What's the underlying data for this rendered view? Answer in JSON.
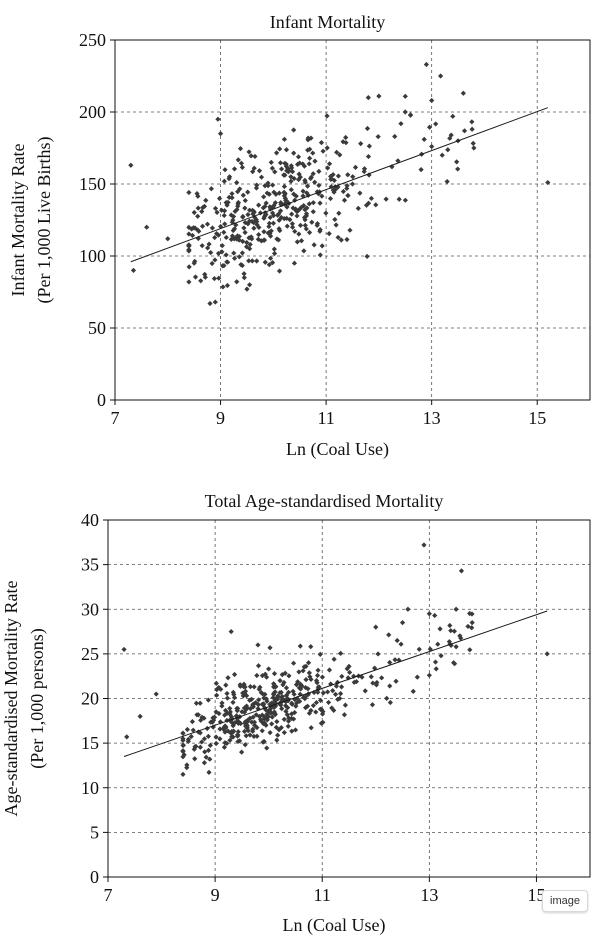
{
  "colors": {
    "point": "#3a3a3a",
    "line": "#1a1a1a",
    "grid": "#555555",
    "axis": "#111111"
  },
  "badge": {
    "label": "image"
  },
  "chart_data": [
    {
      "type": "scatter",
      "title": "Infant Mortality",
      "xlabel": "Ln (Coal Use)",
      "ylabel": [
        "Infant Mortality Rate",
        "(Per 1,000 Live Births)"
      ],
      "xlim": [
        7,
        16
      ],
      "ylim": [
        0,
        250
      ],
      "xticks": [
        7,
        9,
        11,
        13,
        15
      ],
      "yticks": [
        0,
        50,
        100,
        150,
        200,
        250
      ],
      "grid": true,
      "trendline": {
        "x": [
          7.3,
          15.2
        ],
        "y": [
          96,
          203
        ]
      },
      "sample": {
        "count": 420,
        "seed": 11,
        "xcenter": 9.9,
        "xspread": 0.85,
        "yspread": 20,
        "xmin": 8.4,
        "xmax": 13.8
      },
      "points": [
        [
          7.3,
          163
        ],
        [
          7.35,
          90
        ],
        [
          7.6,
          120
        ],
        [
          8.0,
          112
        ],
        [
          8.4,
          82
        ],
        [
          8.5,
          95
        ],
        [
          8.8,
          67
        ],
        [
          8.9,
          68
        ],
        [
          8.95,
          195
        ],
        [
          9.0,
          185
        ],
        [
          9.5,
          77
        ],
        [
          9.55,
          80
        ],
        [
          10.4,
          95
        ],
        [
          11.5,
          150
        ],
        [
          11.8,
          210
        ],
        [
          12.0,
          211
        ],
        [
          12.5,
          200
        ],
        [
          12.6,
          198
        ],
        [
          12.9,
          233
        ],
        [
          13.0,
          208
        ],
        [
          13.0,
          176
        ],
        [
          13.4,
          197
        ],
        [
          13.5,
          180
        ],
        [
          13.6,
          213
        ],
        [
          13.8,
          175
        ],
        [
          15.2,
          151
        ],
        [
          13.2,
          170
        ],
        [
          12.3,
          183
        ],
        [
          12.8,
          160
        ],
        [
          11.2,
          172
        ]
      ]
    },
    {
      "type": "scatter",
      "title": "Total Age-standardised Mortality",
      "xlabel": "Ln (Coal Use)",
      "ylabel": [
        "Age-standardised Mortality Rate",
        "(Per 1,000 persons)"
      ],
      "xlim": [
        7,
        16
      ],
      "ylim": [
        0,
        40
      ],
      "xticks": [
        7,
        9,
        11,
        13,
        15
      ],
      "yticks": [
        0,
        5,
        10,
        15,
        20,
        25,
        30,
        35,
        40
      ],
      "grid": true,
      "trendline": {
        "x": [
          7.3,
          15.2
        ],
        "y": [
          13.5,
          29.8
        ]
      },
      "sample": {
        "count": 420,
        "seed": 29,
        "xcenter": 10.0,
        "xspread": 0.85,
        "yspread": 1.9,
        "xmin": 8.4,
        "xmax": 13.8
      },
      "points": [
        [
          7.3,
          25.5
        ],
        [
          7.35,
          15.7
        ],
        [
          7.6,
          18.0
        ],
        [
          7.9,
          20.5
        ],
        [
          8.5,
          15.2
        ],
        [
          8.8,
          12.8
        ],
        [
          8.9,
          13.2
        ],
        [
          9.2,
          21.5
        ],
        [
          9.3,
          27.5
        ],
        [
          9.8,
          26.0
        ],
        [
          12.0,
          28.0
        ],
        [
          12.5,
          28.5
        ],
        [
          12.6,
          30.0
        ],
        [
          12.9,
          37.2
        ],
        [
          13.0,
          29.5
        ],
        [
          13.1,
          29.3
        ],
        [
          13.0,
          22.6
        ],
        [
          13.5,
          30.0
        ],
        [
          13.6,
          34.3
        ],
        [
          13.5,
          25.8
        ],
        [
          13.8,
          28.5
        ],
        [
          15.2,
          25.0
        ],
        [
          12.7,
          20.8
        ],
        [
          11.5,
          23.6
        ],
        [
          13.2,
          27.8
        ],
        [
          12.4,
          26.5
        ],
        [
          13.4,
          27.6
        ]
      ]
    }
  ]
}
